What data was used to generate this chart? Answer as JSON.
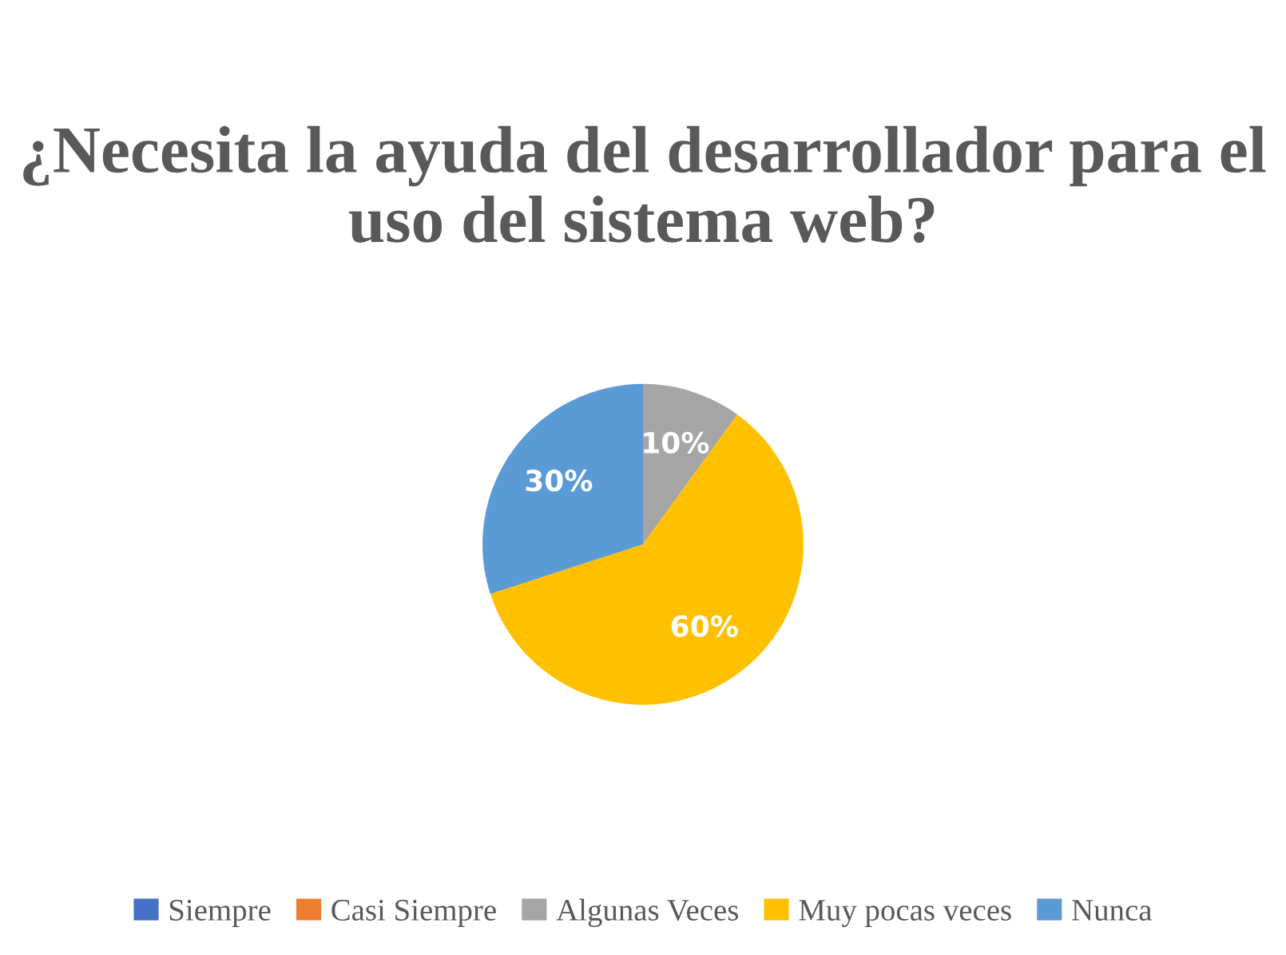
{
  "chart_data": {
    "type": "pie",
    "title": "¿Necesita la ayuda del desarrollador para el uso del sistema web?",
    "categories": [
      "Siempre",
      "Casi Siempre",
      "Algunas Veces",
      "Muy pocas veces",
      "Nunca"
    ],
    "values": [
      0,
      0,
      10,
      60,
      30
    ],
    "colors": [
      "#4472c4",
      "#ed7d31",
      "#a5a5a5",
      "#ffc000",
      "#5b9bd5"
    ],
    "value_labels": [
      null,
      null,
      "10%",
      "60%",
      "30%"
    ],
    "legend": "bottom"
  }
}
